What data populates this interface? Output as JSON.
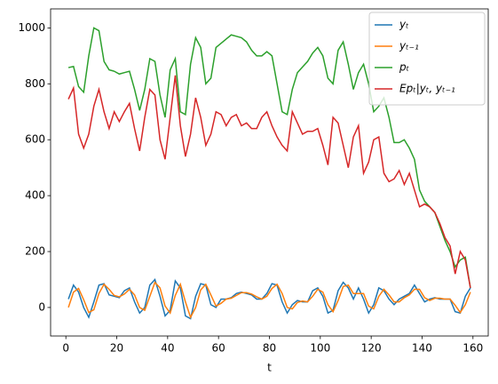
{
  "chart_data": {
    "type": "line",
    "xlabel": "t",
    "xlim": [
      -6,
      166
    ],
    "ylim": [
      -102,
      1068
    ],
    "xticks": [
      0,
      20,
      40,
      60,
      80,
      100,
      120,
      140,
      160
    ],
    "yticks": [
      0,
      200,
      400,
      600,
      800,
      1000
    ],
    "legend": "upper right",
    "x": [
      1,
      3,
      5,
      7,
      9,
      11,
      13,
      15,
      17,
      19,
      21,
      23,
      25,
      27,
      29,
      31,
      33,
      35,
      37,
      39,
      41,
      43,
      45,
      47,
      49,
      51,
      53,
      55,
      57,
      59,
      61,
      63,
      65,
      67,
      69,
      71,
      73,
      75,
      77,
      79,
      81,
      83,
      85,
      87,
      89,
      91,
      93,
      95,
      97,
      99,
      101,
      103,
      105,
      107,
      109,
      111,
      113,
      115,
      117,
      119,
      121,
      123,
      125,
      127,
      129,
      131,
      133,
      135,
      137,
      139,
      141,
      143,
      145,
      147,
      149,
      151,
      153,
      155,
      157,
      159
    ],
    "series": [
      {
        "name": "yₜ",
        "color": "#1f77b4",
        "values": [
          30,
          80,
          55,
          0,
          -35,
          20,
          80,
          85,
          45,
          40,
          35,
          60,
          70,
          20,
          -20,
          0,
          80,
          100,
          40,
          -30,
          -10,
          95,
          70,
          -30,
          -40,
          40,
          85,
          80,
          10,
          0,
          30,
          30,
          35,
          50,
          55,
          50,
          45,
          30,
          30,
          50,
          85,
          80,
          20,
          -20,
          10,
          25,
          20,
          20,
          60,
          70,
          40,
          -20,
          -10,
          60,
          90,
          70,
          30,
          70,
          30,
          -20,
          10,
          70,
          60,
          30,
          10,
          30,
          40,
          50,
          80,
          50,
          20,
          30,
          35,
          30,
          30,
          30,
          -15,
          -20,
          40,
          70
        ]
      },
      {
        "name": "yₜ₋₁",
        "color": "#ff7f0e",
        "values": [
          0,
          55,
          68,
          28,
          -18,
          -8,
          50,
          83,
          65,
          43,
          38,
          48,
          65,
          45,
          0,
          -10,
          40,
          90,
          70,
          5,
          -20,
          43,
          83,
          20,
          -35,
          0,
          63,
          83,
          45,
          5,
          15,
          30,
          33,
          43,
          53,
          53,
          48,
          38,
          30,
          40,
          68,
          83,
          50,
          0,
          -5,
          18,
          23,
          20,
          40,
          65,
          55,
          10,
          -15,
          25,
          75,
          80,
          50,
          50,
          50,
          5,
          -5,
          40,
          65,
          45,
          20,
          20,
          35,
          45,
          65,
          65,
          35,
          25,
          33,
          33,
          30,
          30,
          8,
          -18,
          10,
          55
        ]
      },
      {
        "name": "pₜ",
        "color": "#2ca02c",
        "values": [
          858,
          862,
          790,
          770,
          900,
          1000,
          990,
          880,
          850,
          845,
          835,
          840,
          845,
          780,
          705,
          780,
          890,
          880,
          760,
          680,
          850,
          890,
          700,
          690,
          870,
          965,
          930,
          800,
          820,
          930,
          945,
          960,
          975,
          970,
          965,
          950,
          920,
          900,
          900,
          915,
          900,
          800,
          700,
          690,
          780,
          840,
          860,
          880,
          910,
          930,
          900,
          820,
          800,
          920,
          950,
          870,
          780,
          840,
          870,
          800,
          700,
          720,
          750,
          680,
          590,
          590,
          600,
          570,
          530,
          420,
          380,
          360,
          340,
          290,
          240,
          200,
          145,
          170,
          180,
          70
        ]
      },
      {
        "name": "Epₜ|yₜ, yₜ₋₁",
        "color": "#d62728",
        "values": [
          745,
          785,
          620,
          570,
          620,
          720,
          780,
          700,
          640,
          700,
          665,
          700,
          730,
          640,
          560,
          680,
          780,
          760,
          600,
          530,
          680,
          830,
          650,
          540,
          620,
          750,
          680,
          580,
          620,
          700,
          690,
          650,
          680,
          690,
          650,
          660,
          640,
          640,
          680,
          700,
          650,
          610,
          580,
          560,
          700,
          660,
          620,
          630,
          630,
          640,
          580,
          510,
          680,
          660,
          580,
          500,
          610,
          650,
          480,
          520,
          600,
          610,
          480,
          450,
          460,
          490,
          440,
          480,
          420,
          360,
          370,
          360,
          340,
          300,
          250,
          220,
          120,
          200,
          170,
          70
        ]
      }
    ]
  }
}
